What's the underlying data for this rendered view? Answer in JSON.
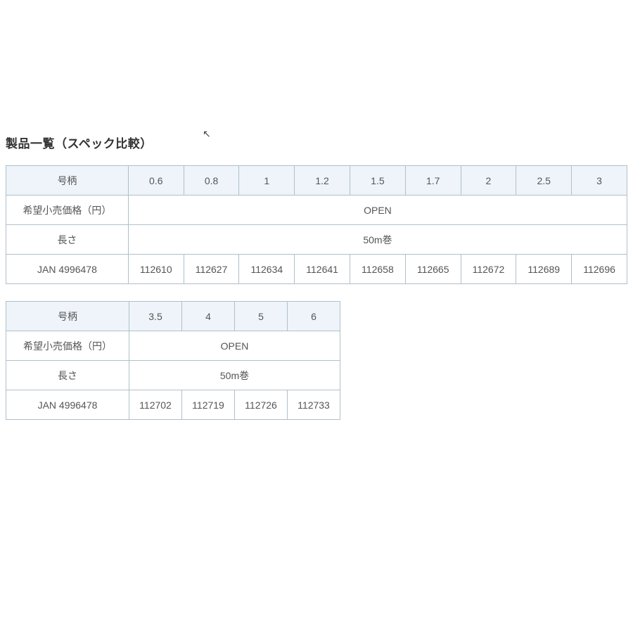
{
  "title": "製品一覧（スペック比較）",
  "labels": {
    "size": "号柄",
    "price": "希望小売価格（円）",
    "length": "長さ",
    "jan": "JAN 4996478"
  },
  "common": {
    "price_value": "OPEN",
    "length_value": "50m巻"
  },
  "table1": {
    "columns": [
      "0.6",
      "0.8",
      "1",
      "1.2",
      "1.5",
      "1.7",
      "2",
      "2.5",
      "3"
    ],
    "jan": [
      "112610",
      "112627",
      "112634",
      "112641",
      "112658",
      "112665",
      "112672",
      "112689",
      "112696"
    ]
  },
  "table2": {
    "columns": [
      "3.5",
      "4",
      "5",
      "6"
    ],
    "jan": [
      "112702",
      "112719",
      "112726",
      "112733"
    ]
  },
  "style": {
    "header_bg": "#eef4fa",
    "border_color": "#b0c0c8",
    "text_color": "#555555",
    "title_color": "#333333",
    "background": "#ffffff",
    "font_size_body": 14,
    "font_size_title": 17
  }
}
